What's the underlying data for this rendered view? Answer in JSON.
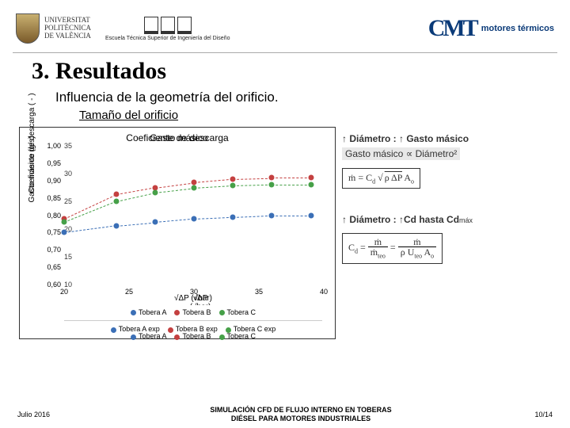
{
  "logos": {
    "upv_line1": "UNIVERSITAT",
    "upv_line2": "POLITÈCNICA",
    "upv_line3": "DE VALÈNCIA",
    "etsid": "Escuela Técnica Superior de Ingeniería del Diseño",
    "cmt_mark": "CMT",
    "cmt_txt": "motores térmicos"
  },
  "headings": {
    "h3": "3. Resultados",
    "h4": "Influencia de la geometría del orificio.",
    "h5": "Tamaño del orificio"
  },
  "chart": {
    "title_a": "Coeficiente de descarga",
    "title_b": "Gasto másico",
    "ylabel_a": "Coeficiente de descarga ( - )",
    "ylabel_b": "Gasto másico (g/s)",
    "xlabel_a": "√ΔP (√bar)",
    "xlabel_b": "√ΔP (√bar)",
    "xlim": [
      20,
      40
    ],
    "xticks": [
      20,
      25,
      30,
      35,
      40
    ],
    "ylim_a": [
      0.6,
      1.0
    ],
    "yticks_a": [
      "0,60",
      "0,65",
      "0,70",
      "0,75",
      "0,80",
      "0,85",
      "0,90",
      "0,95",
      "1,00"
    ],
    "ylim_b": [
      10,
      35
    ],
    "yticks_b": [
      "10",
      "15",
      "20",
      "25",
      "30",
      "35"
    ],
    "series": [
      {
        "name": "Tobera A",
        "color": "#3b6fb6",
        "x": [
          20,
          24,
          27,
          30,
          33,
          36,
          39
        ],
        "y": [
          0.75,
          0.77,
          0.78,
          0.79,
          0.795,
          0.8,
          0.8
        ]
      },
      {
        "name": "Tobera B",
        "color": "#c44040",
        "x": [
          20,
          24,
          27,
          30,
          33,
          36,
          39
        ],
        "y": [
          0.79,
          0.86,
          0.88,
          0.895,
          0.905,
          0.908,
          0.908
        ]
      },
      {
        "name": "Tobera C",
        "color": "#46a048",
        "x": [
          20,
          24,
          27,
          30,
          33,
          36,
          39
        ],
        "y": [
          0.78,
          0.84,
          0.865,
          0.878,
          0.885,
          0.888,
          0.888
        ]
      }
    ],
    "legend1": [
      "Tobera A",
      "Tobera B",
      "Tobera C"
    ],
    "legend2": [
      "Tobera A exp",
      "Tobera B exp",
      "Tobera C exp"
    ],
    "legend_overlay": [
      "Tobera A",
      "Tobera B",
      "Tobera C"
    ],
    "colors": {
      "a": "#3b6fb6",
      "b": "#c44040",
      "c": "#46a048"
    },
    "bg": "#ffffff"
  },
  "side": {
    "line1_pre": "↑ Diámetro :  ",
    "line1_post": "↑ Gasto másico",
    "prop": "Gasto másico ∝ Diámetro²",
    "formula1_html": "ṁ = C<sub>d</sub> · √(ρ ΔP) · A<sub>o</sub>",
    "line2_pre": "↑ Diámetro :  ",
    "line2_post": "↑Cd hasta Cd",
    "line2_suffix": "máx",
    "formula2_lhs": "C",
    "formula2_sub": "d",
    "formula2_eq": " = ",
    "formula2_num": "ṁ",
    "formula2_den": "ṁ_teo",
    "formula2_eq2": " = ",
    "formula2_num2": "ṁ",
    "formula2_den2": "ρ U_teo A_o"
  },
  "footer": {
    "date": "Julio 2016",
    "mid1": "SIMULACIÓN CFD DE FLUJO INTERNO EN TOBERAS",
    "mid2": "DIÉSEL PARA MOTORES INDUSTRIALES",
    "page": "10/14"
  }
}
